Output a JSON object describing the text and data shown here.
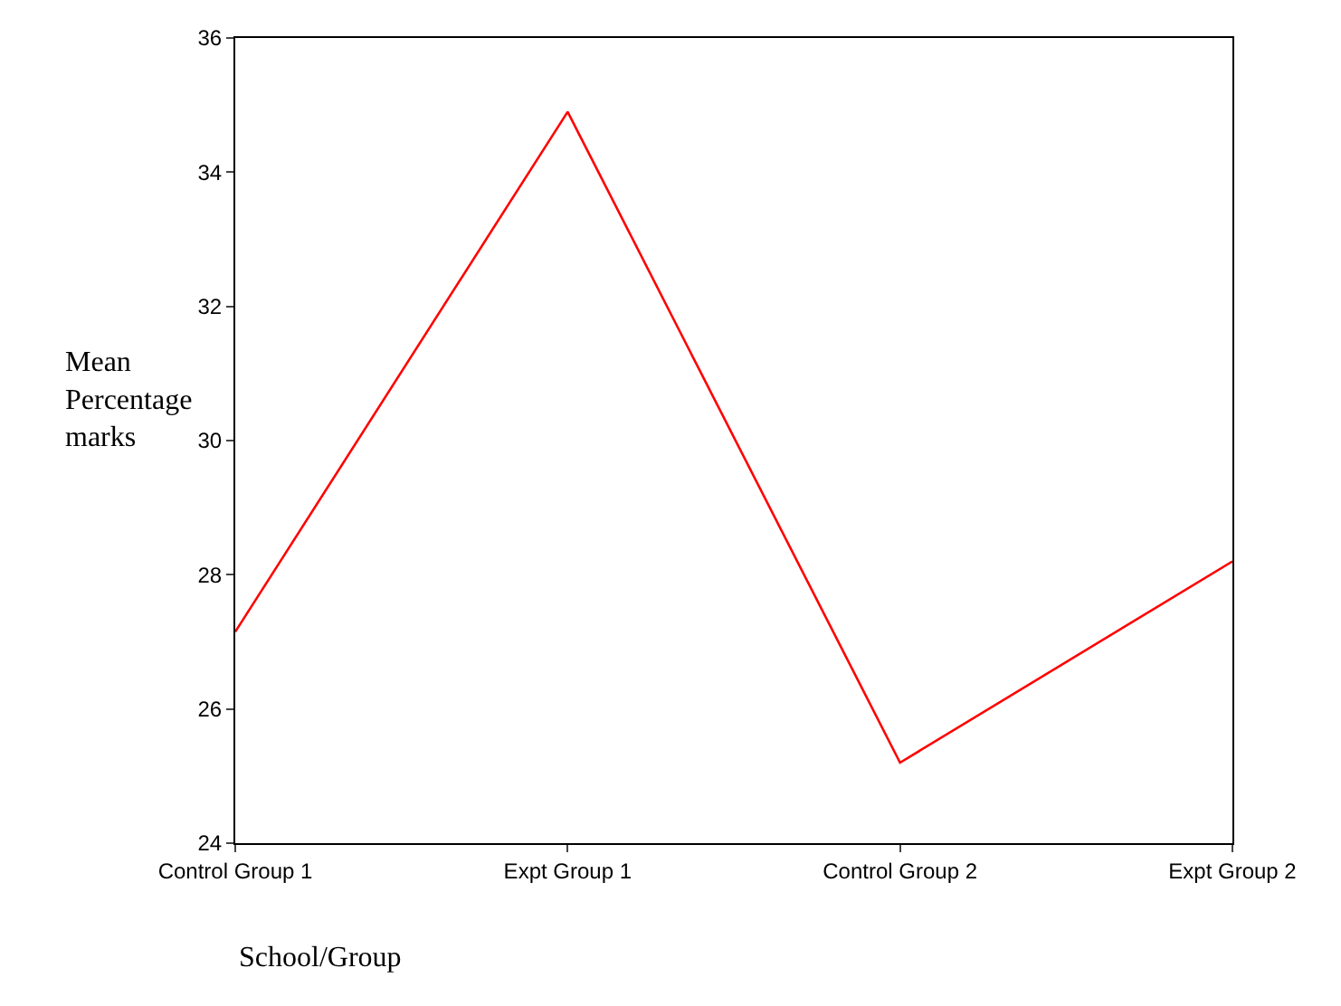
{
  "chart_data": {
    "type": "line",
    "xlabel": "School/Group",
    "ylabel": "Mean\nPercentage\nmarks",
    "categories": [
      "Control Group 1",
      "Expt Group 1",
      "Control Group 2",
      "Expt Group 2"
    ],
    "series": [
      {
        "color": "#ff0000",
        "values": [
          27.15,
          34.9,
          25.2,
          28.2
        ]
      }
    ],
    "ylim": [
      24,
      36
    ],
    "yticks": [
      24,
      26,
      28,
      30,
      32,
      34,
      36
    ],
    "legend": false,
    "marker": "none",
    "line_style": "solid"
  }
}
